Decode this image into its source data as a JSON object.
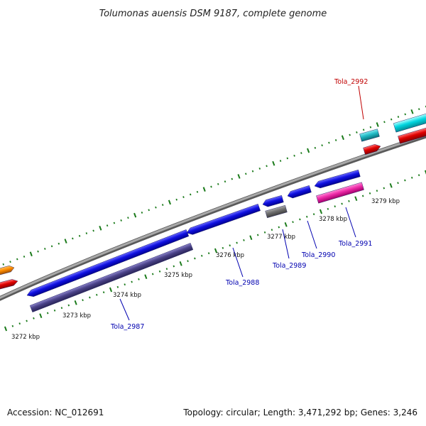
{
  "title": "Tolumonas auensis DSM 9187, complete genome",
  "footer": {
    "accession": "Accession: NC_012691",
    "summary": "Topology: circular; Length: 3,471,292 bp; Genes: 3,246"
  },
  "colors": {
    "backbone": "#8c8c8c",
    "ticks": "#1a7a1a",
    "gene_label": "#0000b0",
    "highlight_label": "#c00000",
    "blue_gene": "#1010e0",
    "purple_gene": "#4a4288",
    "gray_gene": "#6e6e6e",
    "magenta_gene": "#ee2aa8",
    "cyan_gene": "#00d6e0",
    "red_gene": "#e00000",
    "orange_gene": "#ff8c00"
  },
  "tick_labels": [
    "3272 kbp",
    "3273 kbp",
    "3274 kbp",
    "3275 kbp",
    "3276 kbp",
    "3277 kbp",
    "3278 kbp",
    "3279 kbp"
  ],
  "gene_labels": [
    {
      "name": "Tola_2987",
      "color": "gene_label"
    },
    {
      "name": "Tola_2988",
      "color": "gene_label"
    },
    {
      "name": "Tola_2989",
      "color": "gene_label"
    },
    {
      "name": "Tola_2990",
      "color": "gene_label"
    },
    {
      "name": "Tola_2991",
      "color": "gene_label"
    },
    {
      "name": "Tola_2992",
      "color": "highlight_label"
    }
  ]
}
